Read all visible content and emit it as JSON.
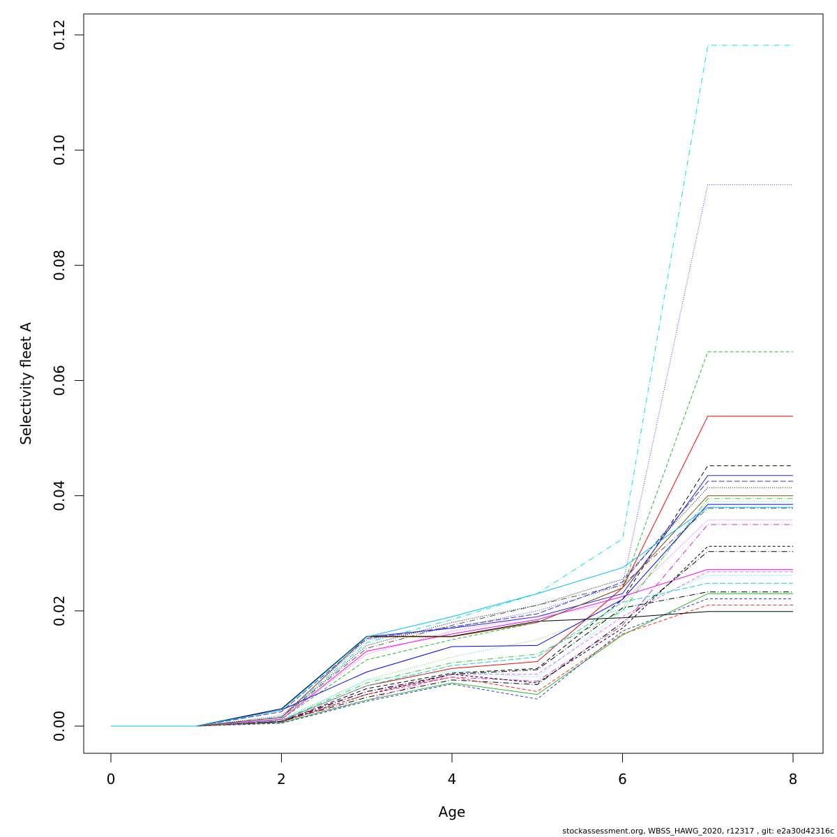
{
  "footer": {
    "source_note": "stockassessment.org, WBSS_HAWG_2020, r12317 , git: e2a30d42316c"
  },
  "chart_data": {
    "type": "line",
    "title": "",
    "xlabel": "Age",
    "ylabel": "Selectivity fleet A",
    "xlim": [
      0,
      8
    ],
    "ylim": [
      0,
      0.12
    ],
    "grid": false,
    "legend": "none",
    "x_ticks": [
      "0",
      "2",
      "4",
      "6",
      "8"
    ],
    "y_ticks": [
      "0.00",
      "0.02",
      "0.04",
      "0.06",
      "0.08",
      "0.10",
      "0.12"
    ],
    "x": [
      0,
      1,
      2,
      3,
      4,
      5,
      6,
      7,
      8
    ],
    "series": [
      {
        "color": "#00e5ee",
        "dash": "8,3,1,3",
        "values": [
          0,
          0,
          0.0016,
          0.0145,
          0.0185,
          0.023,
          0.0325,
          0.1182,
          0.1182
        ]
      },
      {
        "color": "#3333ff",
        "dash": "1,2",
        "values": [
          0,
          0,
          0.0018,
          0.015,
          0.017,
          0.02,
          0.0245,
          0.094,
          0.094
        ]
      },
      {
        "color": "#22bb22",
        "dash": "5,3",
        "values": [
          0,
          0,
          0.0012,
          0.0115,
          0.015,
          0.018,
          0.024,
          0.065,
          0.065
        ]
      },
      {
        "color": "#ff0000",
        "dash": "",
        "values": [
          0,
          0,
          0.001,
          0.007,
          0.01,
          0.0112,
          0.024,
          0.0538,
          0.0538
        ]
      },
      {
        "color": "#000000",
        "dash": "6,4",
        "values": [
          0,
          0,
          0.0008,
          0.0065,
          0.0092,
          0.01,
          0.022,
          0.0452,
          0.0452
        ]
      },
      {
        "color": "#2222ee",
        "dash": "",
        "values": [
          0,
          0,
          0.003,
          0.0155,
          0.017,
          0.019,
          0.023,
          0.0435,
          0.0435
        ]
      },
      {
        "color": "#3333cc",
        "dash": "8,3",
        "values": [
          0,
          0,
          0.0025,
          0.0152,
          0.0172,
          0.0195,
          0.025,
          0.0425,
          0.0425
        ]
      },
      {
        "color": "#000000",
        "dash": "1,2",
        "values": [
          0,
          0,
          0.0015,
          0.014,
          0.018,
          0.021,
          0.0255,
          0.0414,
          0.0414
        ]
      },
      {
        "color": "#33cc33",
        "dash": "8,3,1,3",
        "values": [
          0,
          0,
          0.001,
          0.0075,
          0.011,
          0.0125,
          0.02,
          0.0395,
          0.0395
        ]
      },
      {
        "color": "#66cc66",
        "dash": "1,2",
        "values": [
          0,
          0,
          0.0012,
          0.008,
          0.012,
          0.015,
          0.0205,
          0.039,
          0.039
        ]
      },
      {
        "color": "#ff00ff",
        "dash": "",
        "values": [
          0,
          0,
          0.0012,
          0.013,
          0.016,
          0.0185,
          0.0225,
          0.0272,
          0.0272
        ]
      },
      {
        "color": "#0000ff",
        "dash": "",
        "values": [
          0,
          0,
          0.0028,
          0.0094,
          0.0138,
          0.014,
          0.022,
          0.0385,
          0.0385
        ]
      },
      {
        "color": "#555555",
        "dash": "8,3,1,3",
        "values": [
          0,
          0,
          0.0015,
          0.0135,
          0.0175,
          0.021,
          0.0245,
          0.0378,
          0.0378
        ]
      },
      {
        "color": "#ff44ff",
        "dash": "1,2",
        "values": [
          0,
          0,
          0.0012,
          0.0125,
          0.0165,
          0.019,
          0.0215,
          0.0358,
          0.0358
        ]
      },
      {
        "color": "#dd22dd",
        "dash": "8,3,1,3",
        "values": [
          0,
          0,
          0.001,
          0.006,
          0.0085,
          0.0078,
          0.0175,
          0.035,
          0.035
        ]
      },
      {
        "color": "#000000",
        "dash": "4,3",
        "values": [
          0,
          0,
          0.0008,
          0.0055,
          0.009,
          0.0075,
          0.017,
          0.0312,
          0.0312
        ]
      },
      {
        "color": "#000000",
        "dash": "8,3,1,3",
        "values": [
          0,
          0,
          0.0008,
          0.005,
          0.008,
          0.0072,
          0.018,
          0.0303,
          0.0303
        ]
      },
      {
        "color": "#ff66ff",
        "dash": "5,3",
        "values": [
          0,
          0,
          0.001,
          0.0045,
          0.009,
          0.009,
          0.019,
          0.0268,
          0.0268
        ]
      },
      {
        "color": "#00ffff",
        "dash": "1,2",
        "values": [
          0,
          0,
          0.001,
          0.008,
          0.0095,
          0.0085,
          0.02,
          0.0262,
          0.0262
        ]
      },
      {
        "color": "#22cccc",
        "dash": "8,3",
        "values": [
          0,
          0,
          0.001,
          0.007,
          0.0105,
          0.012,
          0.0215,
          0.0248,
          0.0248
        ]
      },
      {
        "color": "#000000",
        "dash": "8,3,1,3",
        "values": [
          0,
          0,
          0.0008,
          0.006,
          0.009,
          0.0098,
          0.0205,
          0.0233,
          0.0233
        ]
      },
      {
        "color": "#22bb22",
        "dash": "",
        "values": [
          0,
          0,
          0.0006,
          0.0045,
          0.0075,
          0.0055,
          0.0158,
          0.023,
          0.023
        ]
      },
      {
        "color": "#3333dd",
        "dash": "4,3",
        "values": [
          0,
          0,
          0.0005,
          0.0043,
          0.0073,
          0.0047,
          0.0165,
          0.0221,
          0.0221
        ]
      },
      {
        "color": "#ff2222",
        "dash": "5,3",
        "values": [
          0,
          0,
          0.0007,
          0.0055,
          0.0085,
          0.006,
          0.016,
          0.021,
          0.021
        ]
      },
      {
        "color": "#000000",
        "dash": "",
        "values": [
          0,
          0,
          0.003,
          0.0156,
          0.0156,
          0.0182,
          0.0188,
          0.0199,
          0.0199
        ]
      },
      {
        "color": "#8b4513",
        "dash": "",
        "values": [
          0,
          0,
          0.0015,
          0.0155,
          0.0155,
          0.018,
          0.024,
          0.04,
          0.04
        ]
      },
      {
        "color": "#00bfff",
        "dash": "",
        "values": [
          0,
          0,
          0.0028,
          0.0155,
          0.019,
          0.023,
          0.0275,
          0.038,
          0.038
        ]
      }
    ]
  }
}
